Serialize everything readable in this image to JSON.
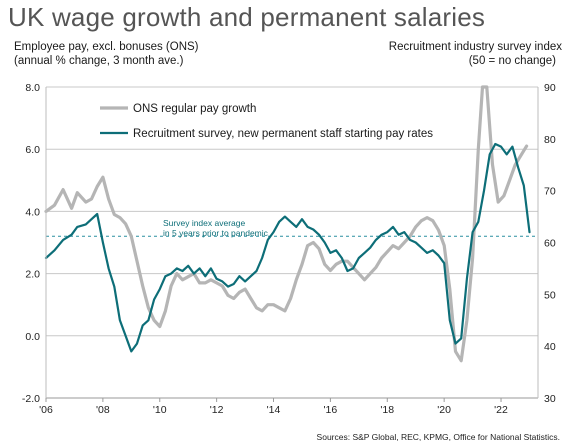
{
  "title": "UK wage growth and permanent salaries",
  "left_axis_title": [
    "Employee pay, excl. bonuses (ONS)",
    "(annual % change, 3 month ave.)"
  ],
  "right_axis_title": [
    "Recruitment industry survey index",
    "(50 = no change)"
  ],
  "source": "Sources: S&P Global, REC, KPMG, Office for National Statistics.",
  "annotation": [
    "Survey index average",
    "in 5 years prior to pandemic"
  ],
  "colors": {
    "ons": "#b5b5b5",
    "survey": "#0d6e78",
    "ref": "#2a8fa0",
    "grid": "#c8c8c8"
  },
  "chart_data": {
    "type": "line",
    "title": "UK wage growth and permanent salaries",
    "x_ticks": [
      "'06",
      "'08",
      "'10",
      "'12",
      "'14",
      "'16",
      "'18",
      "'20",
      "'22"
    ],
    "xlim": [
      2006,
      2023.3
    ],
    "left_axis": {
      "ylim": [
        -2.0,
        8.0
      ],
      "ticks": [
        "-2.0",
        "0.0",
        "2.0",
        "4.0",
        "6.0",
        "8.0"
      ]
    },
    "right_axis": {
      "ylim": [
        30,
        90
      ],
      "ticks": [
        "30",
        "40",
        "50",
        "60",
        "70",
        "80",
        "90"
      ]
    },
    "reference_line": {
      "axis": "right",
      "value": 61.2
    },
    "series": [
      {
        "name": "ONS regular pay growth",
        "axis": "left",
        "x": [
          2006.0,
          2006.3,
          2006.6,
          2006.9,
          2007.1,
          2007.4,
          2007.6,
          2007.8,
          2008.0,
          2008.2,
          2008.4,
          2008.6,
          2008.8,
          2009.0,
          2009.2,
          2009.4,
          2009.6,
          2009.8,
          2010.0,
          2010.2,
          2010.4,
          2010.6,
          2010.8,
          2011.0,
          2011.2,
          2011.4,
          2011.6,
          2011.8,
          2012.0,
          2012.2,
          2012.4,
          2012.6,
          2012.8,
          2013.0,
          2013.2,
          2013.4,
          2013.6,
          2013.8,
          2014.0,
          2014.2,
          2014.4,
          2014.6,
          2014.8,
          2015.0,
          2015.2,
          2015.4,
          2015.6,
          2015.8,
          2016.0,
          2016.2,
          2016.4,
          2016.6,
          2016.8,
          2017.0,
          2017.2,
          2017.4,
          2017.6,
          2017.8,
          2018.0,
          2018.2,
          2018.4,
          2018.6,
          2018.8,
          2019.0,
          2019.2,
          2019.4,
          2019.6,
          2019.8,
          2020.0,
          2020.2,
          2020.4,
          2020.6,
          2020.8,
          2021.0,
          2021.2,
          2021.35,
          2021.5,
          2021.7,
          2021.9,
          2022.1,
          2022.3,
          2022.5,
          2022.7,
          2022.9
        ],
        "y": [
          4.0,
          4.2,
          4.7,
          4.1,
          4.6,
          4.3,
          4.4,
          4.8,
          5.1,
          4.4,
          3.9,
          3.8,
          3.6,
          3.2,
          2.4,
          1.6,
          0.9,
          0.5,
          0.3,
          0.8,
          1.6,
          2.0,
          1.8,
          1.9,
          2.0,
          1.7,
          1.7,
          1.8,
          1.7,
          1.6,
          1.3,
          1.2,
          1.4,
          1.5,
          1.2,
          0.9,
          0.8,
          1.0,
          1.0,
          0.9,
          0.8,
          1.2,
          1.8,
          2.3,
          2.9,
          3.0,
          2.8,
          2.3,
          2.1,
          2.3,
          2.4,
          2.4,
          2.2,
          2.0,
          1.8,
          2.0,
          2.2,
          2.5,
          2.7,
          2.9,
          2.8,
          3.0,
          3.2,
          3.5,
          3.7,
          3.8,
          3.7,
          3.4,
          2.9,
          1.5,
          -0.5,
          -0.8,
          0.5,
          2.5,
          6.0,
          8.0,
          8.0,
          5.5,
          4.3,
          4.5,
          5.0,
          5.5,
          5.8,
          6.1
        ]
      },
      {
        "name": "Recruitment survey, new permanent staff starting pay rates",
        "axis": "right",
        "x": [
          2006.0,
          2006.3,
          2006.6,
          2006.9,
          2007.1,
          2007.4,
          2007.6,
          2007.8,
          2008.0,
          2008.2,
          2008.4,
          2008.6,
          2008.8,
          2009.0,
          2009.2,
          2009.4,
          2009.6,
          2009.8,
          2010.0,
          2010.2,
          2010.4,
          2010.6,
          2010.8,
          2011.0,
          2011.2,
          2011.4,
          2011.6,
          2011.8,
          2012.0,
          2012.2,
          2012.4,
          2012.6,
          2012.8,
          2013.0,
          2013.2,
          2013.4,
          2013.6,
          2013.8,
          2014.0,
          2014.2,
          2014.4,
          2014.6,
          2014.8,
          2015.0,
          2015.2,
          2015.4,
          2015.6,
          2015.8,
          2016.0,
          2016.2,
          2016.4,
          2016.6,
          2016.8,
          2017.0,
          2017.2,
          2017.4,
          2017.6,
          2017.8,
          2018.0,
          2018.2,
          2018.4,
          2018.6,
          2018.8,
          2019.0,
          2019.2,
          2019.4,
          2019.6,
          2019.8,
          2020.0,
          2020.2,
          2020.4,
          2020.6,
          2020.8,
          2021.0,
          2021.2,
          2021.4,
          2021.6,
          2021.8,
          2022.0,
          2022.2,
          2022.4,
          2022.6,
          2022.8,
          2023.0
        ],
        "y": [
          57.0,
          58.5,
          60.5,
          61.5,
          63.0,
          63.5,
          64.5,
          65.5,
          60.0,
          55.0,
          51.5,
          45.0,
          42.0,
          39.0,
          40.5,
          44.0,
          45.0,
          49.0,
          51.0,
          53.5,
          54.0,
          55.0,
          54.5,
          55.5,
          54.0,
          55.0,
          53.5,
          55.0,
          53.0,
          52.5,
          51.5,
          52.0,
          53.5,
          52.5,
          53.5,
          54.5,
          57.0,
          60.5,
          62.0,
          64.0,
          65.0,
          64.0,
          63.0,
          64.5,
          63.0,
          62.5,
          61.5,
          60.0,
          58.0,
          58.5,
          57.0,
          54.5,
          55.0,
          57.0,
          58.0,
          59.0,
          60.5,
          61.5,
          62.0,
          63.0,
          61.5,
          62.0,
          60.5,
          60.0,
          59.0,
          58.0,
          58.5,
          57.5,
          56.0,
          45.0,
          40.5,
          41.5,
          53.0,
          62.0,
          64.0,
          70.0,
          77.0,
          79.0,
          78.5,
          77.0,
          78.5,
          74.5,
          71.0,
          62.0
        ]
      }
    ]
  }
}
